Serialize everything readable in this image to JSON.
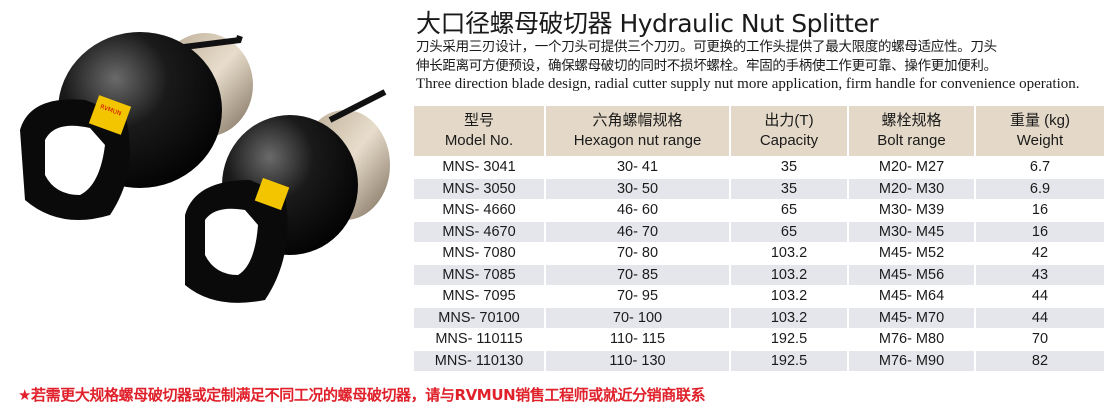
{
  "title": "大口径螺母破切器 Hydraulic Nut Splitter",
  "description_cn_1": "刀头采用三刃设计，一个刀头可提供三个刀刃。可更换的工作头提供了最大限度的螺母适应性。刀头",
  "description_cn_2": "伸长距离可方便预设，确保螺母破切的同时不损坏螺栓。牢固的手柄使工作更可靠、操作更加便利。",
  "description_en": "Three direction blade design, radial cutter supply nut more application, firm handle for convenience operation.",
  "logo_text": "RVMUN",
  "table": {
    "headers": [
      {
        "cn": "型号",
        "en": "Model No."
      },
      {
        "cn": "六角螺帽规格",
        "en": "Hexagon nut range"
      },
      {
        "cn": "出力(T)",
        "en": "Capacity"
      },
      {
        "cn": "螺栓规格",
        "en": "Bolt range"
      },
      {
        "cn": "重量 (kg)",
        "en": "Weight"
      }
    ],
    "rows": [
      [
        "MNS- 3041",
        "30- 41",
        "35",
        "M20- M27",
        "6.7"
      ],
      [
        "MNS- 3050",
        "30- 50",
        "35",
        "M20- M30",
        "6.9"
      ],
      [
        "MNS- 4660",
        "46- 60",
        "65",
        "M30- M39",
        "16"
      ],
      [
        "MNS- 4670",
        "46- 70",
        "65",
        "M30- M45",
        "16"
      ],
      [
        "MNS- 7080",
        "70- 80",
        "103.2",
        "M45- M52",
        "42"
      ],
      [
        "MNS- 7085",
        "70- 85",
        "103.2",
        "M45- M56",
        "43"
      ],
      [
        "MNS- 7095",
        "70- 95",
        "103.2",
        "M45- M64",
        "44"
      ],
      [
        "MNS- 70100",
        "70- 100",
        "103.2",
        "M45- M70",
        "44"
      ],
      [
        "MNS- 110115",
        "110- 115",
        "192.5",
        "M76- M80",
        "70"
      ],
      [
        "MNS- 110130",
        "110- 130",
        "192.5",
        "M76- M90",
        "82"
      ]
    ]
  },
  "footer_note": "★若需更大规格螺母破切器或定制满足不同工况的螺母破切器，请与RVMUN销售工程师或就近分销商联系",
  "colors": {
    "header_bg": "#e4d9c8",
    "alt_row": "#e4e6ec",
    "footer_red": "#e0202a",
    "label_yellow": "#f2c500"
  }
}
